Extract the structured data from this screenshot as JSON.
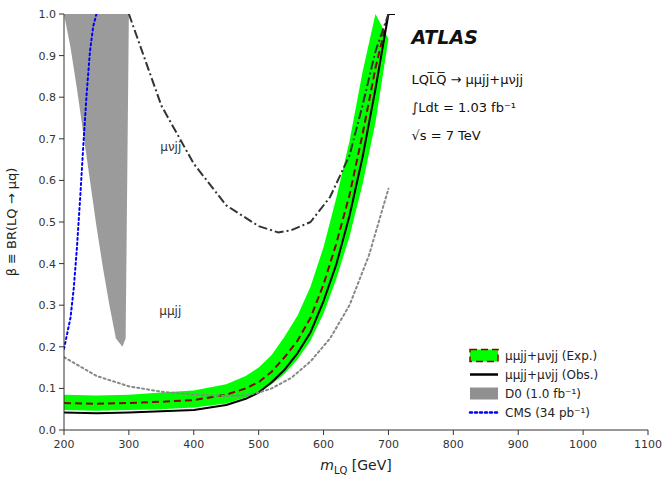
{
  "chart_data": {
    "type": "line",
    "x_label": "mLQ [GeV]",
    "y_label": "β ≡ BR(LQ → μq)",
    "xlim": [
      200,
      1100
    ],
    "ylim": [
      0,
      1.0
    ],
    "xticks": [
      200,
      300,
      400,
      500,
      600,
      700,
      800,
      900,
      1000,
      1100
    ],
    "yticks": [
      {
        "value": 0,
        "label": "0.0"
      },
      0.1,
      0.2,
      0.3,
      0.4,
      0.5,
      0.6,
      0.7,
      0.8,
      0.9,
      {
        "value": 1.0,
        "label": "1.0"
      }
    ],
    "grid": false,
    "legend": "lower right",
    "series": [
      {
        "type": "band",
        "color": "#00ff00",
        "x": [
          200,
          250,
          300,
          350,
          400,
          450,
          480,
          500,
          520,
          540,
          560,
          580,
          600,
          620,
          640,
          660,
          680
        ],
        "values": [
          0.085,
          0.083,
          0.085,
          0.09,
          0.095,
          0.11,
          0.13,
          0.15,
          0.18,
          0.225,
          0.275,
          0.345,
          0.44,
          0.56,
          0.695,
          0.86,
          1.0
        ],
        "lower_x": [
          200,
          250,
          300,
          350,
          400,
          450,
          480,
          500,
          520,
          540,
          560,
          580,
          600,
          620,
          640,
          660,
          680,
          700
        ],
        "lower": [
          0.048,
          0.046,
          0.048,
          0.05,
          0.054,
          0.064,
          0.078,
          0.09,
          0.11,
          0.135,
          0.17,
          0.215,
          0.28,
          0.365,
          0.465,
          0.59,
          0.74,
          0.94
        ]
      },
      {
        "name": "μμjj+μνjj (Exp.)",
        "type": "line",
        "line_style": "dashed",
        "color": "#8b0000",
        "x": [
          200,
          250,
          300,
          350,
          400,
          450,
          480,
          500,
          520,
          540,
          560,
          580,
          600,
          620,
          640,
          660,
          680,
          700,
          710
        ],
        "values": [
          0.065,
          0.063,
          0.065,
          0.068,
          0.072,
          0.085,
          0.1,
          0.115,
          0.14,
          0.175,
          0.215,
          0.27,
          0.35,
          0.45,
          0.565,
          0.71,
          0.87,
          1.0,
          1.0
        ]
      },
      {
        "name": "μμjj+μνjj (Obs.)",
        "type": "line",
        "line_style": "solid",
        "color": "#000000",
        "x": [
          200,
          250,
          300,
          350,
          400,
          450,
          480,
          500,
          520,
          540,
          560,
          580,
          600,
          620,
          640,
          660,
          680,
          700,
          710
        ],
        "values": [
          0.042,
          0.04,
          0.042,
          0.045,
          0.048,
          0.06,
          0.075,
          0.09,
          0.115,
          0.145,
          0.185,
          0.235,
          0.31,
          0.4,
          0.515,
          0.655,
          0.82,
          1.0,
          1.0
        ]
      },
      {
        "name": "D0 (1.0 fb⁻¹)",
        "type": "area",
        "color": "#909090",
        "x": [
          200,
          210,
          220,
          230,
          240,
          250,
          260,
          270,
          280,
          290,
          295,
          300
        ],
        "values": [
          1.0,
          0.92,
          0.82,
          0.71,
          0.6,
          0.49,
          0.39,
          0.3,
          0.22,
          0.2,
          0.22,
          1.0
        ]
      },
      {
        "name": "CMS (34 pb⁻¹)",
        "type": "line",
        "line_style": "dotted",
        "color": "#0000ff",
        "x": [
          200,
          210,
          215,
          220,
          225,
          230,
          235,
          240,
          245,
          250,
          252
        ],
        "values": [
          0.195,
          0.27,
          0.34,
          0.44,
          0.56,
          0.69,
          0.81,
          0.91,
          0.97,
          1.0,
          1.0
        ]
      },
      {
        "type": "line",
        "line_style": "dashdot",
        "color": "#333333",
        "x": [
          300,
          350,
          400,
          450,
          500,
          530,
          550,
          580,
          610,
          640,
          660,
          680,
          700
        ],
        "values": [
          1.0,
          0.78,
          0.64,
          0.54,
          0.49,
          0.475,
          0.48,
          0.5,
          0.56,
          0.66,
          0.78,
          0.91,
          1.0
        ]
      },
      {
        "type": "line",
        "line_style": "dotted",
        "color": "#888888",
        "x": [
          200,
          250,
          300,
          350,
          400,
          450,
          480,
          500,
          520,
          550,
          580,
          610,
          640,
          670,
          700
        ],
        "values": [
          0.175,
          0.13,
          0.105,
          0.092,
          0.085,
          0.082,
          0.083,
          0.09,
          0.1,
          0.125,
          0.165,
          0.22,
          0.3,
          0.42,
          0.58
        ]
      }
    ],
    "annotations": [
      {
        "text": "ATLAS"
      },
      {
        "text": "LQL̅Q̅ → μμjj+μνjj"
      },
      {
        "text": "∫Ldt = 1.03 fb⁻¹"
      },
      {
        "text": "√s = 7 TeV"
      },
      {
        "text": "μνjj",
        "x": 390,
        "y": 0.68
      },
      {
        "text": "μμjj",
        "x": 390,
        "y": 0.285
      }
    ]
  }
}
